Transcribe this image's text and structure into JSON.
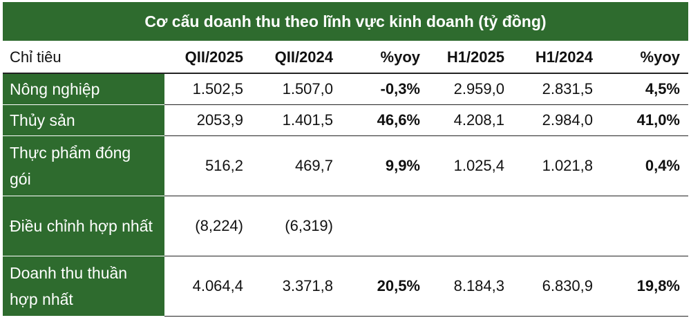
{
  "chart_data": {
    "type": "table",
    "title": "Cơ cấu doanh thu theo lĩnh vực kinh doanh (tỷ đồng)",
    "columns": [
      "Chỉ tiêu",
      "QII/2025",
      "QII/2024",
      "%yoy",
      "H1/2025",
      "H1/2024",
      "%yoy"
    ],
    "rows": [
      {
        "label": "Nông nghiệp",
        "values": [
          "1.502,5",
          "1.507,0",
          "-0,3%",
          "2.959,0",
          "2.831,5",
          "4,5%"
        ]
      },
      {
        "label": "Thủy sản",
        "values": [
          "2053,9",
          "1.401,5",
          "46,6%",
          "4.208,1",
          "2.984,0",
          "41,0%"
        ]
      },
      {
        "label": "Thực phẩm đóng gói",
        "values": [
          "516,2",
          "469,7",
          "9,9%",
          "1.025,4",
          "1.021,8",
          "0,4%"
        ]
      },
      {
        "label": "Điều chỉnh hợp nhất",
        "values": [
          "(8,224)",
          "(6,319)",
          "",
          "",
          "",
          ""
        ]
      },
      {
        "label": "Doanh thu thuần hợp nhất",
        "values": [
          "4.064,4",
          "3.371,8",
          "20,5%",
          "8.184,3",
          "6.830,9",
          "19,8%"
        ]
      }
    ]
  },
  "colors": {
    "header_green": "#2e6b2e",
    "text": "#111111",
    "header_text": "#ffffff"
  }
}
